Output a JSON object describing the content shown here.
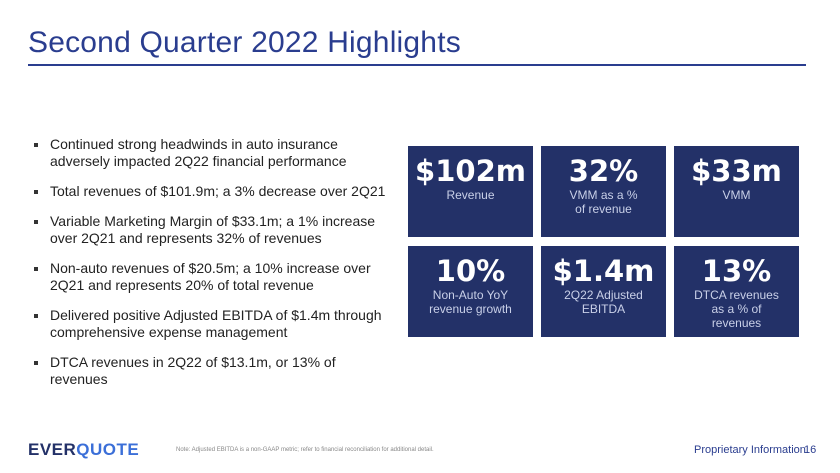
{
  "title": "Second Quarter 2022 Highlights",
  "bullets": [
    "Continued strong headwinds in auto insurance adversely impacted 2Q22 financial performance",
    "Total revenues of $101.9m; a 3% decrease over 2Q21",
    "Variable Marketing Margin of $33.1m; a 1% increase over 2Q21 and represents 32% of revenues",
    "Non-auto revenues of $20.5m; a 10% increase over 2Q21 and represents 20% of total revenue",
    "Delivered positive Adjusted EBITDA of $1.4m through comprehensive expense management",
    "DTCA revenues in 2Q22 of $13.1m, or 13% of revenues"
  ],
  "tiles": [
    {
      "value": "$102m",
      "label": "Revenue"
    },
    {
      "value": "32%",
      "label": "VMM as a % of revenue"
    },
    {
      "value": "$33m",
      "label": "VMM"
    },
    {
      "value": "10%",
      "label": "Non-Auto YoY revenue growth"
    },
    {
      "value": "$1.4m",
      "label": "2Q22 Adjusted EBITDA"
    },
    {
      "value": "13%",
      "label": "DTCA revenues as a % of revenues"
    }
  ],
  "footer": {
    "logo_part1": "EVER",
    "logo_part2": "QUOTE",
    "note": "Note: Adjusted EBITDA is a non-GAAP metric; refer to financial reconciliation for additional detail.",
    "proprietary": "Proprietary Information",
    "page_number": "16"
  },
  "colors": {
    "tile_bg": "#233168",
    "title": "#2a3d8f",
    "logo_accent": "#3b6fd8"
  }
}
